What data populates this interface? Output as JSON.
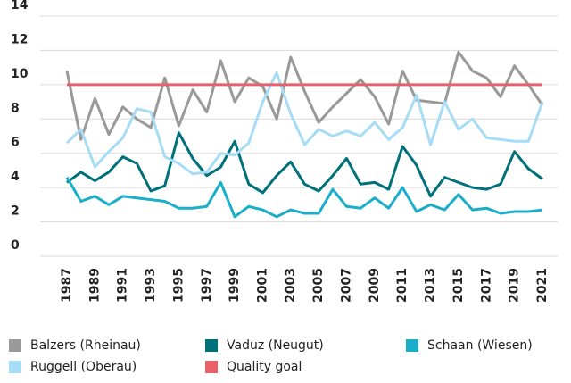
{
  "chart_data": {
    "type": "line",
    "categories": [
      "1987",
      null,
      "1989",
      null,
      "1991",
      null,
      "1993",
      null,
      "1995",
      null,
      "1997",
      null,
      "1999",
      null,
      "2001",
      null,
      "2003",
      null,
      "2005",
      null,
      "2007",
      null,
      "2009",
      null,
      "2011",
      null,
      "2013",
      null,
      "2015",
      null,
      "2017",
      null,
      "2019",
      null,
      "2021"
    ],
    "series": [
      {
        "name": "Balzers (Rheinau)",
        "color": "#999999",
        "values": [
          10.8,
          6.8,
          9.2,
          7.1,
          8.7,
          8.0,
          7.5,
          10.4,
          7.6,
          9.7,
          8.4,
          11.4,
          9.0,
          10.4,
          9.9,
          8.0,
          11.6,
          9.6,
          7.8,
          8.7,
          9.5,
          10.3,
          9.3,
          7.7,
          10.8,
          9.1,
          9.0,
          8.9,
          11.9,
          10.8,
          10.4,
          9.3,
          11.1,
          10.0,
          8.8
        ]
      },
      {
        "name": "Vaduz (Neugut)",
        "color": "#00707a",
        "values": [
          4.3,
          4.9,
          4.4,
          4.9,
          5.8,
          5.4,
          3.8,
          4.1,
          7.2,
          5.7,
          4.7,
          5.2,
          6.7,
          4.2,
          3.7,
          4.7,
          5.5,
          4.2,
          3.8,
          4.7,
          5.7,
          4.2,
          4.3,
          3.9,
          6.4,
          5.3,
          3.5,
          4.6,
          4.3,
          4.0,
          3.9,
          4.2,
          6.1,
          5.1,
          4.5
        ]
      },
      {
        "name": "Schaan (Wiesen)",
        "color": "#1aaecb",
        "values": [
          4.6,
          3.2,
          3.5,
          3.0,
          3.5,
          3.4,
          3.3,
          3.2,
          2.8,
          2.8,
          2.9,
          4.3,
          2.3,
          2.9,
          2.7,
          2.3,
          2.7,
          2.5,
          2.5,
          3.9,
          2.9,
          2.8,
          3.4,
          2.8,
          4.0,
          2.6,
          3.0,
          2.7,
          3.6,
          2.7,
          2.8,
          2.5,
          2.6,
          2.6,
          2.7
        ]
      },
      {
        "name": "Ruggell (Oberau)",
        "color": "#a6dcf5",
        "values": [
          6.6,
          7.4,
          5.2,
          6.1,
          6.9,
          8.6,
          8.4,
          5.8,
          5.4,
          4.8,
          4.9,
          6.0,
          5.9,
          6.6,
          9.0,
          10.7,
          8.3,
          6.5,
          7.4,
          7.0,
          7.3,
          7.0,
          7.8,
          6.8,
          7.5,
          9.4,
          6.5,
          9.0,
          7.4,
          8.0,
          6.9,
          6.8,
          6.7,
          6.7,
          9.0
        ]
      },
      {
        "name": "Quality goal",
        "color": "#e8606a",
        "values": [
          10,
          10,
          10,
          10,
          10,
          10,
          10,
          10,
          10,
          10,
          10,
          10,
          10,
          10,
          10,
          10,
          10,
          10,
          10,
          10,
          10,
          10,
          10,
          10,
          10,
          10,
          10,
          10,
          10,
          10,
          10,
          10,
          10,
          10,
          10
        ]
      }
    ],
    "ylim": [
      0,
      14
    ],
    "yticks": [
      0,
      2,
      4,
      6,
      8,
      10,
      12,
      14
    ],
    "grid": true,
    "legend": "bottom"
  }
}
